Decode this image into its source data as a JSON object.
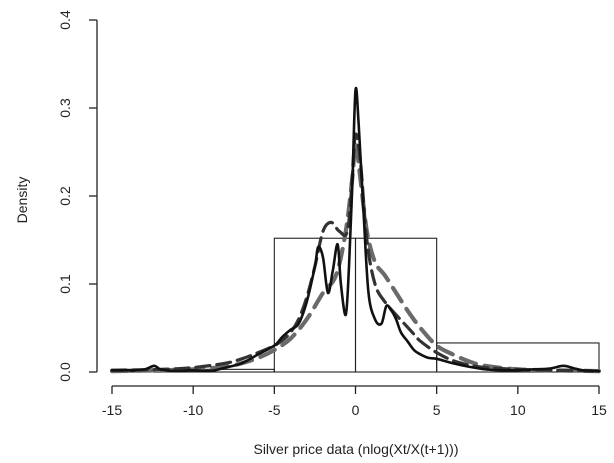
{
  "chart_data": {
    "type": "histogram_density",
    "xlabel": "Silver price data (nlog(Xt/X(t+1)))",
    "ylabel": "Density",
    "xlim": [
      -15,
      15
    ],
    "ylim": [
      0,
      0.4
    ],
    "x_ticks": [
      -15,
      -10,
      -5,
      0,
      5,
      10,
      15
    ],
    "y_ticks": [
      0.0,
      0.1,
      0.2,
      0.3,
      0.4
    ],
    "y_tick_labels": [
      "0.0",
      "0.1",
      "0.2",
      "0.3",
      "0.4"
    ],
    "histogram": {
      "bin_edges": [
        -15,
        -5,
        0,
        5,
        15
      ],
      "densities": [
        0.003,
        0.152,
        0.152,
        0.033
      ]
    },
    "series": [
      {
        "style": "solid",
        "color": "#111111",
        "x": [
          -15,
          -14,
          -13,
          -12.4,
          -12,
          -11,
          -10,
          -9,
          -8,
          -7,
          -6,
          -5,
          -4.5,
          -4,
          -3.5,
          -3,
          -2.5,
          -2.3,
          -2,
          -1.7,
          -1.4,
          -1.1,
          -0.9,
          -0.6,
          -0.4,
          -0.2,
          0,
          0.2,
          0.5,
          0.8,
          1.2,
          1.6,
          1.9,
          2.2,
          2.5,
          2.8,
          3.2,
          3.6,
          4,
          4.5,
          5,
          6,
          7,
          8,
          9,
          10,
          11,
          12,
          12.8,
          13.5,
          14,
          15
        ],
        "y": [
          0.002,
          0.002,
          0.003,
          0.007,
          0.003,
          0.001,
          0.002,
          0.001,
          0.005,
          0.01,
          0.02,
          0.03,
          0.04,
          0.048,
          0.055,
          0.08,
          0.12,
          0.142,
          0.13,
          0.09,
          0.115,
          0.145,
          0.1,
          0.065,
          0.12,
          0.21,
          0.32,
          0.28,
          0.18,
          0.09,
          0.06,
          0.055,
          0.075,
          0.07,
          0.06,
          0.045,
          0.035,
          0.025,
          0.02,
          0.016,
          0.015,
          0.01,
          0.006,
          0.003,
          0.002,
          0.002,
          0.003,
          0.004,
          0.007,
          0.004,
          0.002,
          0.001
        ]
      },
      {
        "style": "dashed",
        "color": "#333333",
        "x": [
          -15,
          -12,
          -10,
          -8,
          -7,
          -6,
          -5,
          -4.5,
          -4,
          -3.5,
          -3,
          -2.5,
          -2,
          -1.5,
          -1,
          -0.5,
          -0.2,
          0,
          0.3,
          0.7,
          1.2,
          1.8,
          2.5,
          3,
          3.5,
          4,
          5,
          6,
          7,
          8,
          10,
          12,
          15
        ],
        "y": [
          0.002,
          0.003,
          0.005,
          0.01,
          0.015,
          0.022,
          0.03,
          0.036,
          0.045,
          0.06,
          0.085,
          0.12,
          0.16,
          0.17,
          0.16,
          0.16,
          0.22,
          0.27,
          0.24,
          0.15,
          0.1,
          0.08,
          0.065,
          0.055,
          0.045,
          0.035,
          0.022,
          0.013,
          0.008,
          0.005,
          0.003,
          0.002,
          0.001
        ]
      },
      {
        "style": "dashed-gray",
        "color": "#6a6a6a",
        "x": [
          -15,
          -12,
          -10,
          -8,
          -7,
          -6,
          -5,
          -4,
          -3,
          -2,
          -1.2,
          -0.6,
          -0.2,
          0,
          0.3,
          0.7,
          1.2,
          1.8,
          2.5,
          3.2,
          4,
          5,
          6,
          7,
          8,
          10,
          12,
          15
        ],
        "y": [
          0.001,
          0.002,
          0.003,
          0.006,
          0.01,
          0.016,
          0.025,
          0.038,
          0.06,
          0.09,
          0.11,
          0.16,
          0.22,
          0.26,
          0.22,
          0.16,
          0.125,
          0.11,
          0.09,
          0.07,
          0.05,
          0.03,
          0.02,
          0.012,
          0.007,
          0.003,
          0.002,
          0.001
        ]
      }
    ]
  }
}
